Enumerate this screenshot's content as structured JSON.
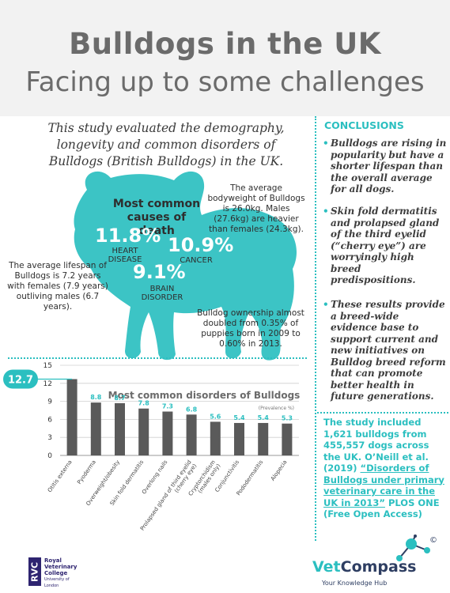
{
  "header": {
    "title": "Bulldogs in the UK",
    "subtitle": "Facing up to some challenges"
  },
  "intro": "This study evaluated the demography, longevity and common disorders of Bulldogs (British Bulldogs) in the UK.",
  "infographic": {
    "causes_title": "Most common causes of death",
    "heart": {
      "value": "11.8%",
      "label": "HEART DISEASE"
    },
    "cancer": {
      "value": "10.9%",
      "label": "CANCER"
    },
    "brain": {
      "value": "9.1%",
      "label": "BRAIN DISORDER"
    },
    "bodyweight": "The average bodyweight of Bulldogs is 26.0kg. Males (27.6kg) are heavier than females (24.3kg).",
    "lifespan": "The average lifespan of Bulldogs is 7.2 years with females (7.9 years) outliving males (6.7 years).",
    "ownership": "Bulldog ownership almost doubled from 0.35% of puppies born in 2009 to 0.60% in 2013."
  },
  "conclusions": {
    "heading": "CONCLUSIONS",
    "bullets": [
      "Bulldogs are rising in popularity but have a shorter lifespan than the overall average for all dogs.",
      "Skin fold dermatitis and prolapsed gland of the third eyelid (“cherry eye”) are worryingly high breed predispositions.",
      "These results provide a breed-wide evidence base to support current and new initiatives on Bulldog breed reform that can promote better health in future generations."
    ]
  },
  "study": {
    "lead": "The study included 1,621 bulldogs from 455,557 dogs across the UK. O’Neill et al. (2019) ",
    "link": "“Disorders of Bulldogs under primary veterinary care in the UK in 2013”",
    "tail": " PLOS ONE (Free Open Access)"
  },
  "chart_data": {
    "type": "bar",
    "title": "Most common disorders of Bulldogs",
    "subtitle": "(Prevalence %)",
    "categories": [
      "Otitis externa",
      "Pyoderma",
      "Overweight/obesity",
      "Skin fold dermatitis",
      "Overlong nails",
      "Prolapsed gland of third eyelid (cherry eye)",
      "Cryptorchidism (males only)",
      "Conjunctivitis",
      "Pododermatitis",
      "Alopecia"
    ],
    "values": [
      12.7,
      8.8,
      8.7,
      7.8,
      7.3,
      6.8,
      5.6,
      5.4,
      5.4,
      5.3
    ],
    "value_labels": [
      "12.7",
      "8.8",
      "8.7",
      "7.8",
      "7.3",
      "6.8",
      "5.6",
      "5.4",
      "5.4",
      "5.3"
    ],
    "yticks": [
      0,
      3,
      6,
      9,
      12,
      15
    ],
    "ylim": [
      0,
      15
    ],
    "grid": true,
    "bar_color": "#5a5a5a",
    "label_color": "#2bbfc0"
  },
  "footer": {
    "rvc_mark": "RVC",
    "rvc_name_1": "Royal",
    "rvc_name_2": "Veterinary",
    "rvc_name_3": "College",
    "rvc_sub": "University of London",
    "vc_name_1": "Vet",
    "vc_name_2": "Compass",
    "vc_tagline": "Your Knowledge Hub",
    "vc_copyright": "©"
  },
  "colors": {
    "teal": "#2bbfc0",
    "grey": "#6b6b6b"
  }
}
